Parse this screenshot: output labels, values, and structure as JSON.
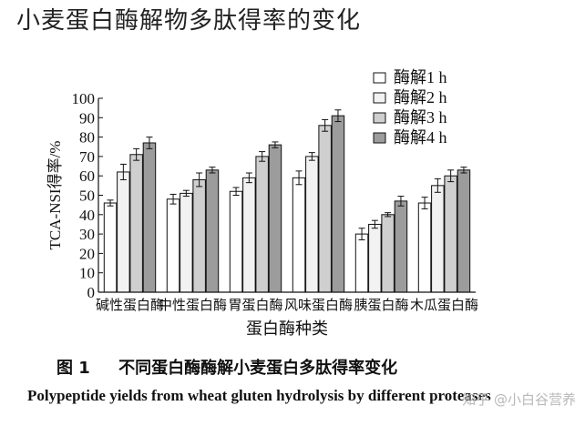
{
  "header": {
    "title": "小麦蛋白酶解物多肽得率的变化"
  },
  "caption": {
    "cn": "图 1     不同蛋白酶酶解小麦蛋白多肽得率变化",
    "en": "Polypeptide yields from wheat gluten hydrolysis by different proteases"
  },
  "watermark": {
    "text": "知乎 @小白谷营养"
  },
  "chart_data": {
    "type": "bar",
    "xlabel": "蛋白酶种类",
    "ylabel": "TCA-NSI得率/%",
    "ylim": [
      0,
      100
    ],
    "yticks": [
      0,
      10,
      20,
      30,
      40,
      50,
      60,
      70,
      80,
      90,
      100
    ],
    "grid": false,
    "legend_position": "top-right",
    "categories": [
      "碱性蛋白酶",
      "中性蛋白酶",
      "胃蛋白酶",
      "风味蛋白酶",
      "胰蛋白酶",
      "木瓜蛋白酶"
    ],
    "series": [
      {
        "name": "酶解1 h",
        "color": "#ffffff",
        "values": [
          46,
          48,
          52,
          59,
          30,
          46
        ],
        "errors": [
          1.5,
          2.5,
          2,
          3.5,
          3,
          3
        ]
      },
      {
        "name": "酶解2 h",
        "color": "#f2f2f2",
        "values": [
          62,
          51,
          59,
          70,
          35,
          55
        ],
        "errors": [
          4,
          1.5,
          2.5,
          2,
          2,
          3.5
        ]
      },
      {
        "name": "酶解3 h",
        "color": "#cfcfcf",
        "values": [
          71,
          58,
          70,
          86,
          40,
          60
        ],
        "errors": [
          3,
          3.5,
          2.5,
          3,
          1,
          3
        ]
      },
      {
        "name": "酶解4 h",
        "color": "#9c9c9c",
        "values": [
          77,
          63,
          76,
          91,
          47,
          63
        ],
        "errors": [
          3,
          1.5,
          1.5,
          3,
          2.5,
          1.5
        ]
      }
    ]
  }
}
